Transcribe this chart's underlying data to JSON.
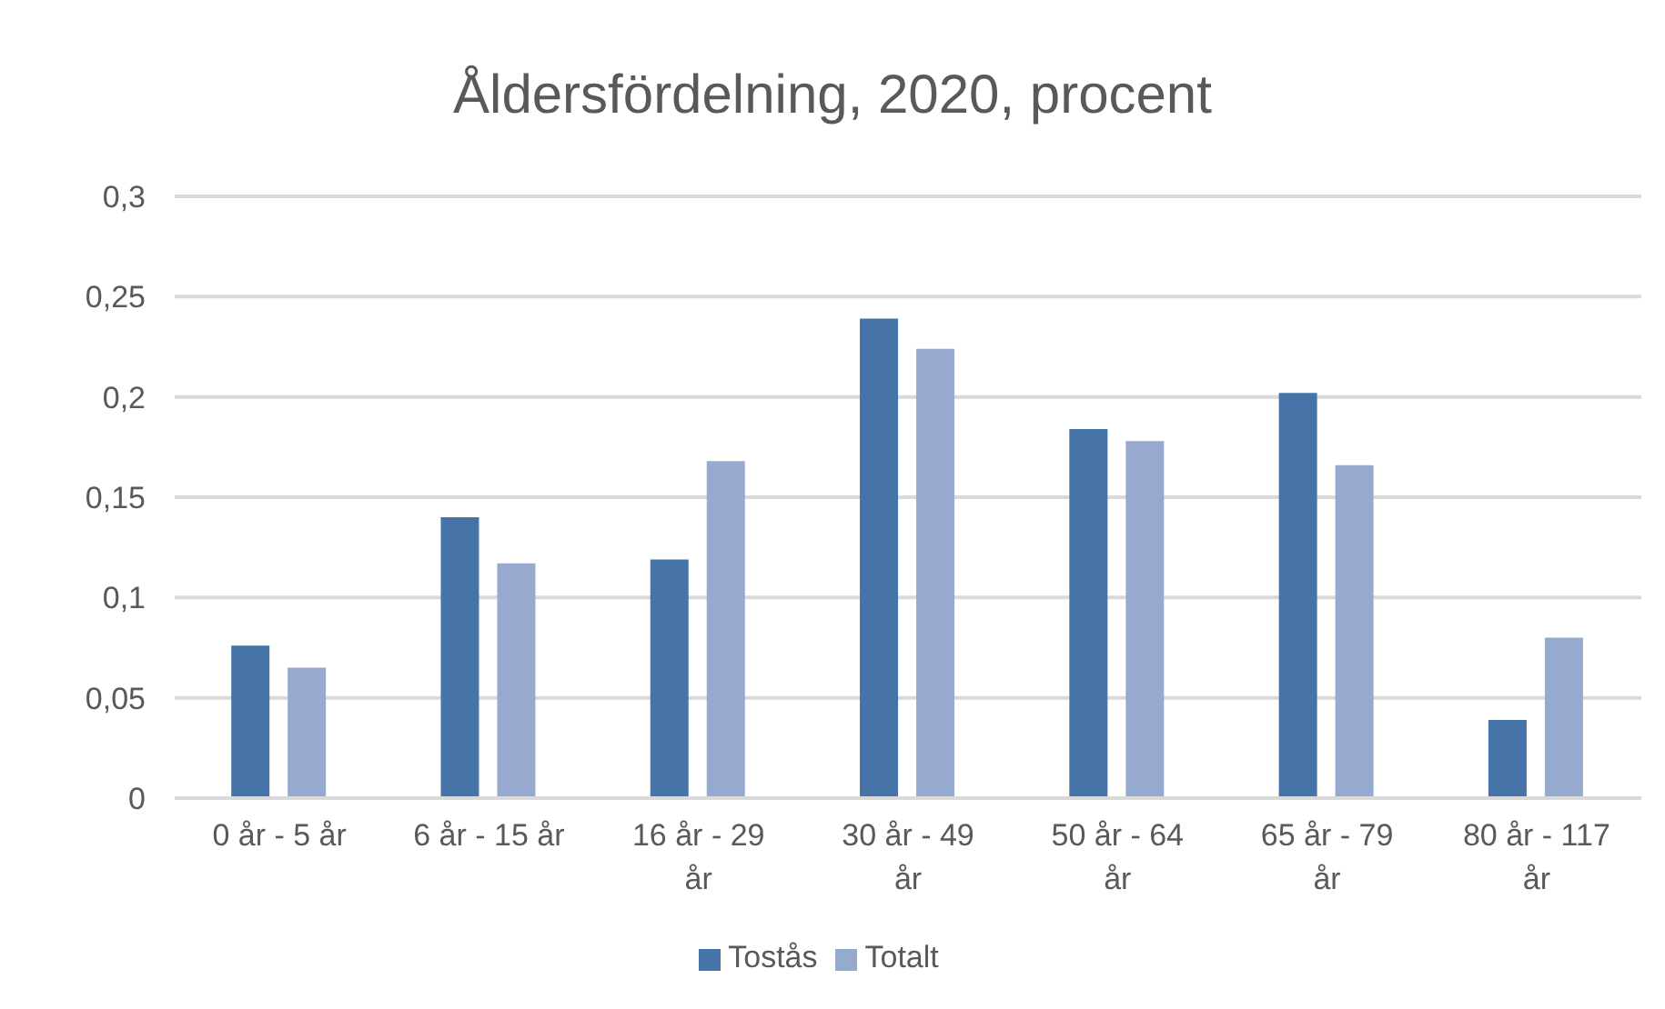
{
  "chart_data": {
    "type": "bar",
    "title": "Åldersfördelning, 2020, procent",
    "categories": [
      "0 år - 5 år",
      "6 år - 15 år",
      "16 år - 29 år",
      "30 år - 49 år",
      "50 år - 64 år",
      "65 år - 79 år",
      "80 år - 117 år"
    ],
    "series": [
      {
        "name": "Tostås",
        "color": "#4674a8",
        "values": [
          0.076,
          0.14,
          0.119,
          0.239,
          0.184,
          0.202,
          0.039
        ]
      },
      {
        "name": "Totalt",
        "color": "#96aad0",
        "values": [
          0.065,
          0.117,
          0.168,
          0.224,
          0.178,
          0.166,
          0.08
        ]
      }
    ],
    "ylim": [
      0,
      0.3
    ],
    "yticks": [
      {
        "value": 0,
        "label": "0"
      },
      {
        "value": 0.05,
        "label": "0,05"
      },
      {
        "value": 0.1,
        "label": "0,1"
      },
      {
        "value": 0.15,
        "label": "0,15"
      },
      {
        "value": 0.2,
        "label": "0,2"
      },
      {
        "value": 0.25,
        "label": "0,25"
      },
      {
        "value": 0.3,
        "label": "0,3"
      }
    ],
    "grid": "y",
    "legend": "bottom"
  }
}
